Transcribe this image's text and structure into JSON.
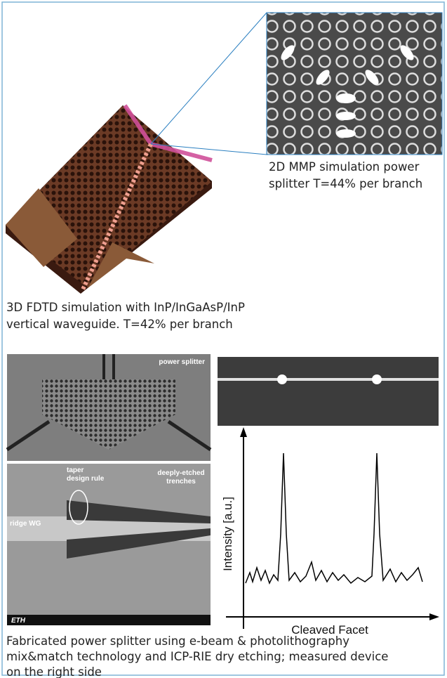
{
  "top": {
    "inset_caption": [
      "2D MMP simulation power",
      "splitter T=44% per branch"
    ],
    "main_caption": [
      "3D FDTD simulation with InP/InGaAsP/InP",
      "vertical waveguide. T=42% per branch"
    ]
  },
  "bottom": {
    "sem_top_label": "power splitter",
    "sem_bottom_labels": {
      "taper": [
        "taper",
        "design rule"
      ],
      "trenches": [
        "deeply-etched",
        "trenches"
      ],
      "ridge": "ridge WG",
      "logo": "ETH"
    },
    "plot": {
      "y_label": "Intensity [a.u.]",
      "x_label": "Cleaved Facet"
    },
    "caption": [
      "Fabricated power splitter using e-beam & photolithography",
      "mix&match technology and ICP-RIE dry etching; measured device",
      "on the right side"
    ]
  }
}
